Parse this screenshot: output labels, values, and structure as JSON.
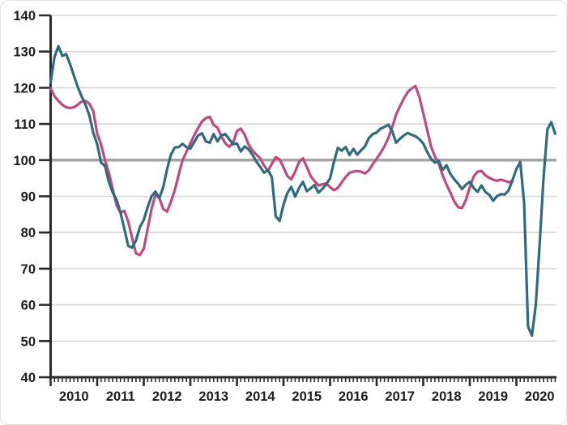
{
  "chart_data": {
    "type": "line",
    "title": "",
    "xlabel": "",
    "ylabel": "",
    "ylim": [
      40,
      140
    ],
    "yticks": [
      40,
      50,
      60,
      70,
      80,
      90,
      100,
      110,
      120,
      130,
      140
    ],
    "year_labels": [
      "2010",
      "2011",
      "2012",
      "2013",
      "2014",
      "2015",
      "2016",
      "2017",
      "2018",
      "2019",
      "2020"
    ],
    "reference_line": 100,
    "grid": true,
    "legend": "none",
    "frequency": "monthly",
    "start": "2010-01",
    "series": [
      {
        "name": "series_pink",
        "color": "#bf4a80",
        "start_month_index": 0,
        "values": [
          119.9,
          117.6,
          116.4,
          115.3,
          114.6,
          114.4,
          114.6,
          115.3,
          116.2,
          116.4,
          115.6,
          113.5,
          107.3,
          104.3,
          100,
          96.5,
          92,
          87.5,
          85.5,
          86,
          83,
          78.5,
          74.2,
          73.8,
          75.5,
          81,
          86.5,
          90.5,
          89.5,
          86.5,
          85.8,
          88.5,
          91.7,
          96,
          100,
          102.3,
          104.6,
          106.9,
          108.9,
          110.7,
          111.6,
          112,
          109.7,
          109,
          106.6,
          104.7,
          103.7,
          104.7,
          108,
          108.7,
          107,
          104.3,
          102.7,
          101.5,
          100.5,
          98.5,
          97,
          99,
          100.8,
          100.2,
          98,
          95.6,
          94.7,
          96.8,
          99.5,
          100.5,
          98.1,
          95.6,
          94.2,
          93,
          93.3,
          93.6,
          92.5,
          91.7,
          92.3,
          93.9,
          95.3,
          96.5,
          96.8,
          97,
          96.8,
          96.3,
          97.2,
          98.9,
          100.4,
          102,
          103.8,
          106.1,
          109.1,
          112.6,
          114.9,
          117,
          118.8,
          119.8,
          120.5,
          117.5,
          113,
          108.4,
          103.8,
          101,
          99,
          95.8,
          93.2,
          91,
          88.6,
          87,
          86.8,
          89,
          92.5,
          95.5,
          96.8,
          97,
          95.8,
          95.1,
          94.6,
          94.3,
          94.6,
          94.3,
          93.9,
          94.2
        ]
      },
      {
        "name": "series_teal",
        "color": "#2e6b7c",
        "start_month_index": 0,
        "values": [
          121.5,
          128.5,
          131.5,
          128.8,
          129.3,
          126.5,
          123.3,
          120.2,
          117.6,
          115.3,
          112.3,
          107.5,
          104.4,
          99.3,
          98.4,
          94,
          91,
          89,
          85.5,
          81,
          76.3,
          75.8,
          77.8,
          81.5,
          83.5,
          87,
          90,
          91.3,
          89.5,
          92.5,
          97.5,
          101.5,
          103.5,
          103.6,
          104.5,
          103.6,
          103.2,
          105,
          106.8,
          107.4,
          105.2,
          104.8,
          107.2,
          105.2,
          106.8,
          107.2,
          105.8,
          104.4,
          104.6,
          102.4,
          103.8,
          103,
          101.5,
          99.6,
          98.1,
          96.5,
          97.3,
          95.3,
          84.5,
          83.2,
          87.7,
          90.9,
          92.6,
          89.9,
          92.3,
          94,
          91.4,
          92.2,
          93.1,
          91,
          92,
          93.3,
          95,
          99.5,
          103.4,
          102.6,
          103.6,
          101.4,
          103.1,
          101.5,
          102.7,
          103.8,
          106.1,
          107.2,
          107.6,
          108.7,
          109.2,
          109.8,
          108,
          104.8,
          105.9,
          106.8,
          107.5,
          107,
          106.6,
          105.8,
          104.6,
          102.3,
          100.4,
          99.3,
          99.8,
          97.3,
          98.6,
          96.2,
          94.7,
          93.5,
          92,
          93.2,
          94,
          92.3,
          91.2,
          93,
          91.2,
          90.4,
          88.8,
          90,
          90.6,
          90.5,
          91.6,
          94.5,
          97.5,
          99.5,
          88,
          54,
          51.5,
          60,
          77,
          95,
          108.5,
          110.5,
          107.3
        ]
      }
    ],
    "colors": {
      "grid": "#d6d6d6",
      "reference": "#a3a3a3",
      "axis": "#2b2b2b",
      "text": "#1c1c1c"
    }
  }
}
